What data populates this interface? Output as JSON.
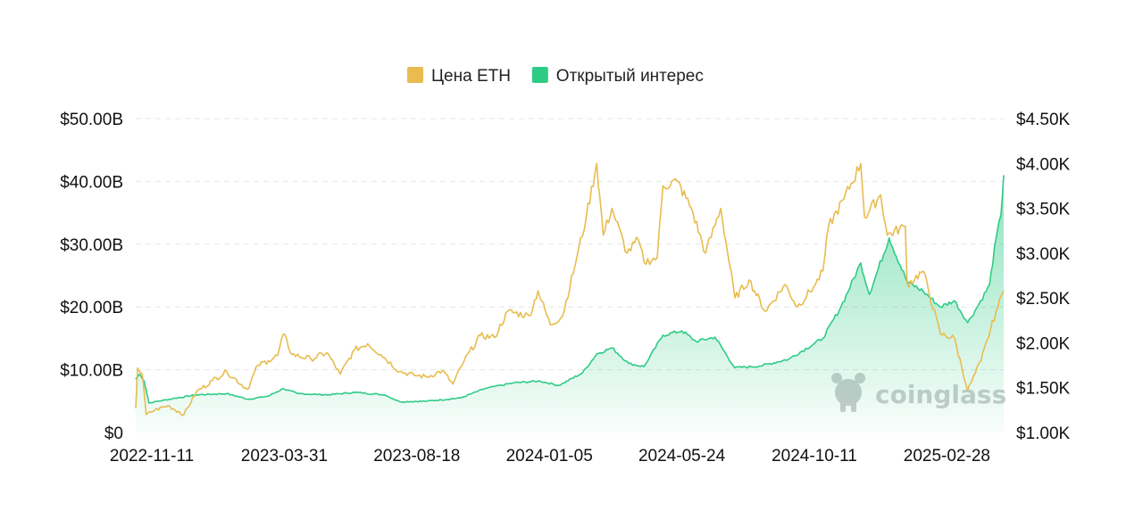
{
  "chart_data": {
    "type": "line",
    "title": "",
    "legend_position": "top-center",
    "grid": true,
    "x_ticks": [
      "2022-11-11",
      "2023-03-31",
      "2023-08-18",
      "2024-01-05",
      "2024-05-24",
      "2024-10-11",
      "2025-02-28"
    ],
    "x_range": [
      "2022-11-11",
      "2025-05-16"
    ],
    "y_left": {
      "ticks": [
        "$0",
        "$10.00B",
        "$20.00B",
        "$30.00B",
        "$40.00B",
        "$50.00B"
      ],
      "range": [
        0,
        50
      ],
      "unit": "B USD"
    },
    "y_right": {
      "ticks": [
        "$1.00K",
        "$1.50K",
        "$2.00K",
        "$2.50K",
        "$3.00K",
        "$3.50K",
        "$4.00K",
        "$4.50K"
      ],
      "range": [
        1000,
        4500
      ],
      "unit": "USD"
    },
    "series": [
      {
        "name": "Цена ETH",
        "axis": "right",
        "color": "#E8BC4F",
        "points": [
          [
            "2022-11-11",
            1270
          ],
          [
            "2022-11-13",
            1720
          ],
          [
            "2022-11-18",
            1650
          ],
          [
            "2022-11-22",
            1200
          ],
          [
            "2022-12-01",
            1250
          ],
          [
            "2022-12-15",
            1300
          ],
          [
            "2023-01-01",
            1200
          ],
          [
            "2023-01-14",
            1450
          ],
          [
            "2023-01-31",
            1580
          ],
          [
            "2023-02-15",
            1680
          ],
          [
            "2023-03-09",
            1480
          ],
          [
            "2023-03-20",
            1750
          ],
          [
            "2023-03-31",
            1800
          ],
          [
            "2023-04-10",
            1860
          ],
          [
            "2023-04-16",
            2100
          ],
          [
            "2023-04-25",
            1870
          ],
          [
            "2023-05-15",
            1820
          ],
          [
            "2023-06-01",
            1890
          ],
          [
            "2023-06-15",
            1650
          ],
          [
            "2023-06-30",
            1920
          ],
          [
            "2023-07-14",
            1990
          ],
          [
            "2023-07-28",
            1870
          ],
          [
            "2023-08-17",
            1680
          ],
          [
            "2023-09-01",
            1640
          ],
          [
            "2023-09-15",
            1620
          ],
          [
            "2023-10-01",
            1690
          ],
          [
            "2023-10-12",
            1540
          ],
          [
            "2023-10-24",
            1800
          ],
          [
            "2023-11-10",
            2080
          ],
          [
            "2023-11-25",
            2060
          ],
          [
            "2023-12-09",
            2350
          ],
          [
            "2024-01-01",
            2300
          ],
          [
            "2024-01-10",
            2580
          ],
          [
            "2024-01-23",
            2200
          ],
          [
            "2024-02-05",
            2300
          ],
          [
            "2024-02-20",
            2950
          ],
          [
            "2024-03-01",
            3400
          ],
          [
            "2024-03-12",
            4000
          ],
          [
            "2024-03-19",
            3200
          ],
          [
            "2024-03-28",
            3500
          ],
          [
            "2024-04-13",
            3000
          ],
          [
            "2024-04-25",
            3150
          ],
          [
            "2024-05-01",
            2900
          ],
          [
            "2024-05-15",
            2950
          ],
          [
            "2024-05-21",
            3750
          ],
          [
            "2024-06-05",
            3800
          ],
          [
            "2024-06-20",
            3500
          ],
          [
            "2024-07-05",
            3000
          ],
          [
            "2024-07-21",
            3500
          ],
          [
            "2024-08-05",
            2500
          ],
          [
            "2024-08-20",
            2700
          ],
          [
            "2024-09-06",
            2350
          ],
          [
            "2024-09-27",
            2650
          ],
          [
            "2024-10-10",
            2400
          ],
          [
            "2024-10-29",
            2650
          ],
          [
            "2024-11-06",
            2800
          ],
          [
            "2024-11-12",
            3300
          ],
          [
            "2024-11-28",
            3600
          ],
          [
            "2024-12-16",
            4000
          ],
          [
            "2024-12-20",
            3400
          ],
          [
            "2025-01-06",
            3650
          ],
          [
            "2025-01-13",
            3200
          ],
          [
            "2025-02-01",
            3300
          ],
          [
            "2025-02-03",
            2650
          ],
          [
            "2025-02-20",
            2800
          ],
          [
            "2025-03-10",
            2100
          ],
          [
            "2025-03-25",
            2050
          ],
          [
            "2025-04-08",
            1470
          ],
          [
            "2025-04-22",
            1800
          ],
          [
            "2025-05-08",
            2350
          ],
          [
            "2025-05-16",
            2580
          ]
        ]
      },
      {
        "name": "Открытый интерес",
        "axis": "left",
        "color": "#2FCB86",
        "points": [
          [
            "2022-11-11",
            8.5
          ],
          [
            "2022-11-15",
            9.3
          ],
          [
            "2022-11-20",
            8.2
          ],
          [
            "2022-11-25",
            4.7
          ],
          [
            "2022-12-05",
            5.0
          ],
          [
            "2022-12-20",
            5.4
          ],
          [
            "2023-01-14",
            6.0
          ],
          [
            "2023-02-15",
            6.2
          ],
          [
            "2023-03-10",
            5.3
          ],
          [
            "2023-03-31",
            5.8
          ],
          [
            "2023-04-16",
            7.0
          ],
          [
            "2023-05-01",
            6.2
          ],
          [
            "2023-06-01",
            6.0
          ],
          [
            "2023-07-01",
            6.4
          ],
          [
            "2023-08-01",
            6.0
          ],
          [
            "2023-08-17",
            4.9
          ],
          [
            "2023-09-15",
            5.0
          ],
          [
            "2023-10-20",
            5.5
          ],
          [
            "2023-11-15",
            7.0
          ],
          [
            "2023-12-15",
            7.9
          ],
          [
            "2024-01-12",
            8.2
          ],
          [
            "2024-02-01",
            7.5
          ],
          [
            "2024-02-26",
            9.5
          ],
          [
            "2024-03-12",
            12.5
          ],
          [
            "2024-03-28",
            13.5
          ],
          [
            "2024-04-15",
            11.0
          ],
          [
            "2024-05-01",
            10.5
          ],
          [
            "2024-05-21",
            15.5
          ],
          [
            "2024-06-10",
            16.2
          ],
          [
            "2024-06-25",
            14.5
          ],
          [
            "2024-07-15",
            15.2
          ],
          [
            "2024-08-05",
            10.3
          ],
          [
            "2024-09-01",
            10.6
          ],
          [
            "2024-10-01",
            11.7
          ],
          [
            "2024-11-06",
            15.0
          ],
          [
            "2024-11-25",
            20.0
          ],
          [
            "2024-12-16",
            27.0
          ],
          [
            "2024-12-25",
            22.0
          ],
          [
            "2025-01-15",
            31.0
          ],
          [
            "2025-02-03",
            24.0
          ],
          [
            "2025-02-20",
            22.5
          ],
          [
            "2025-03-10",
            20.0
          ],
          [
            "2025-03-25",
            21.0
          ],
          [
            "2025-04-08",
            17.5
          ],
          [
            "2025-04-20",
            20.5
          ],
          [
            "2025-05-01",
            23.5
          ],
          [
            "2025-05-08",
            31.0
          ],
          [
            "2025-05-13",
            34.5
          ],
          [
            "2025-05-16",
            41.0
          ]
        ]
      }
    ]
  },
  "watermark": {
    "text": "coinglass",
    "icon": "coinglass-logo-icon"
  }
}
